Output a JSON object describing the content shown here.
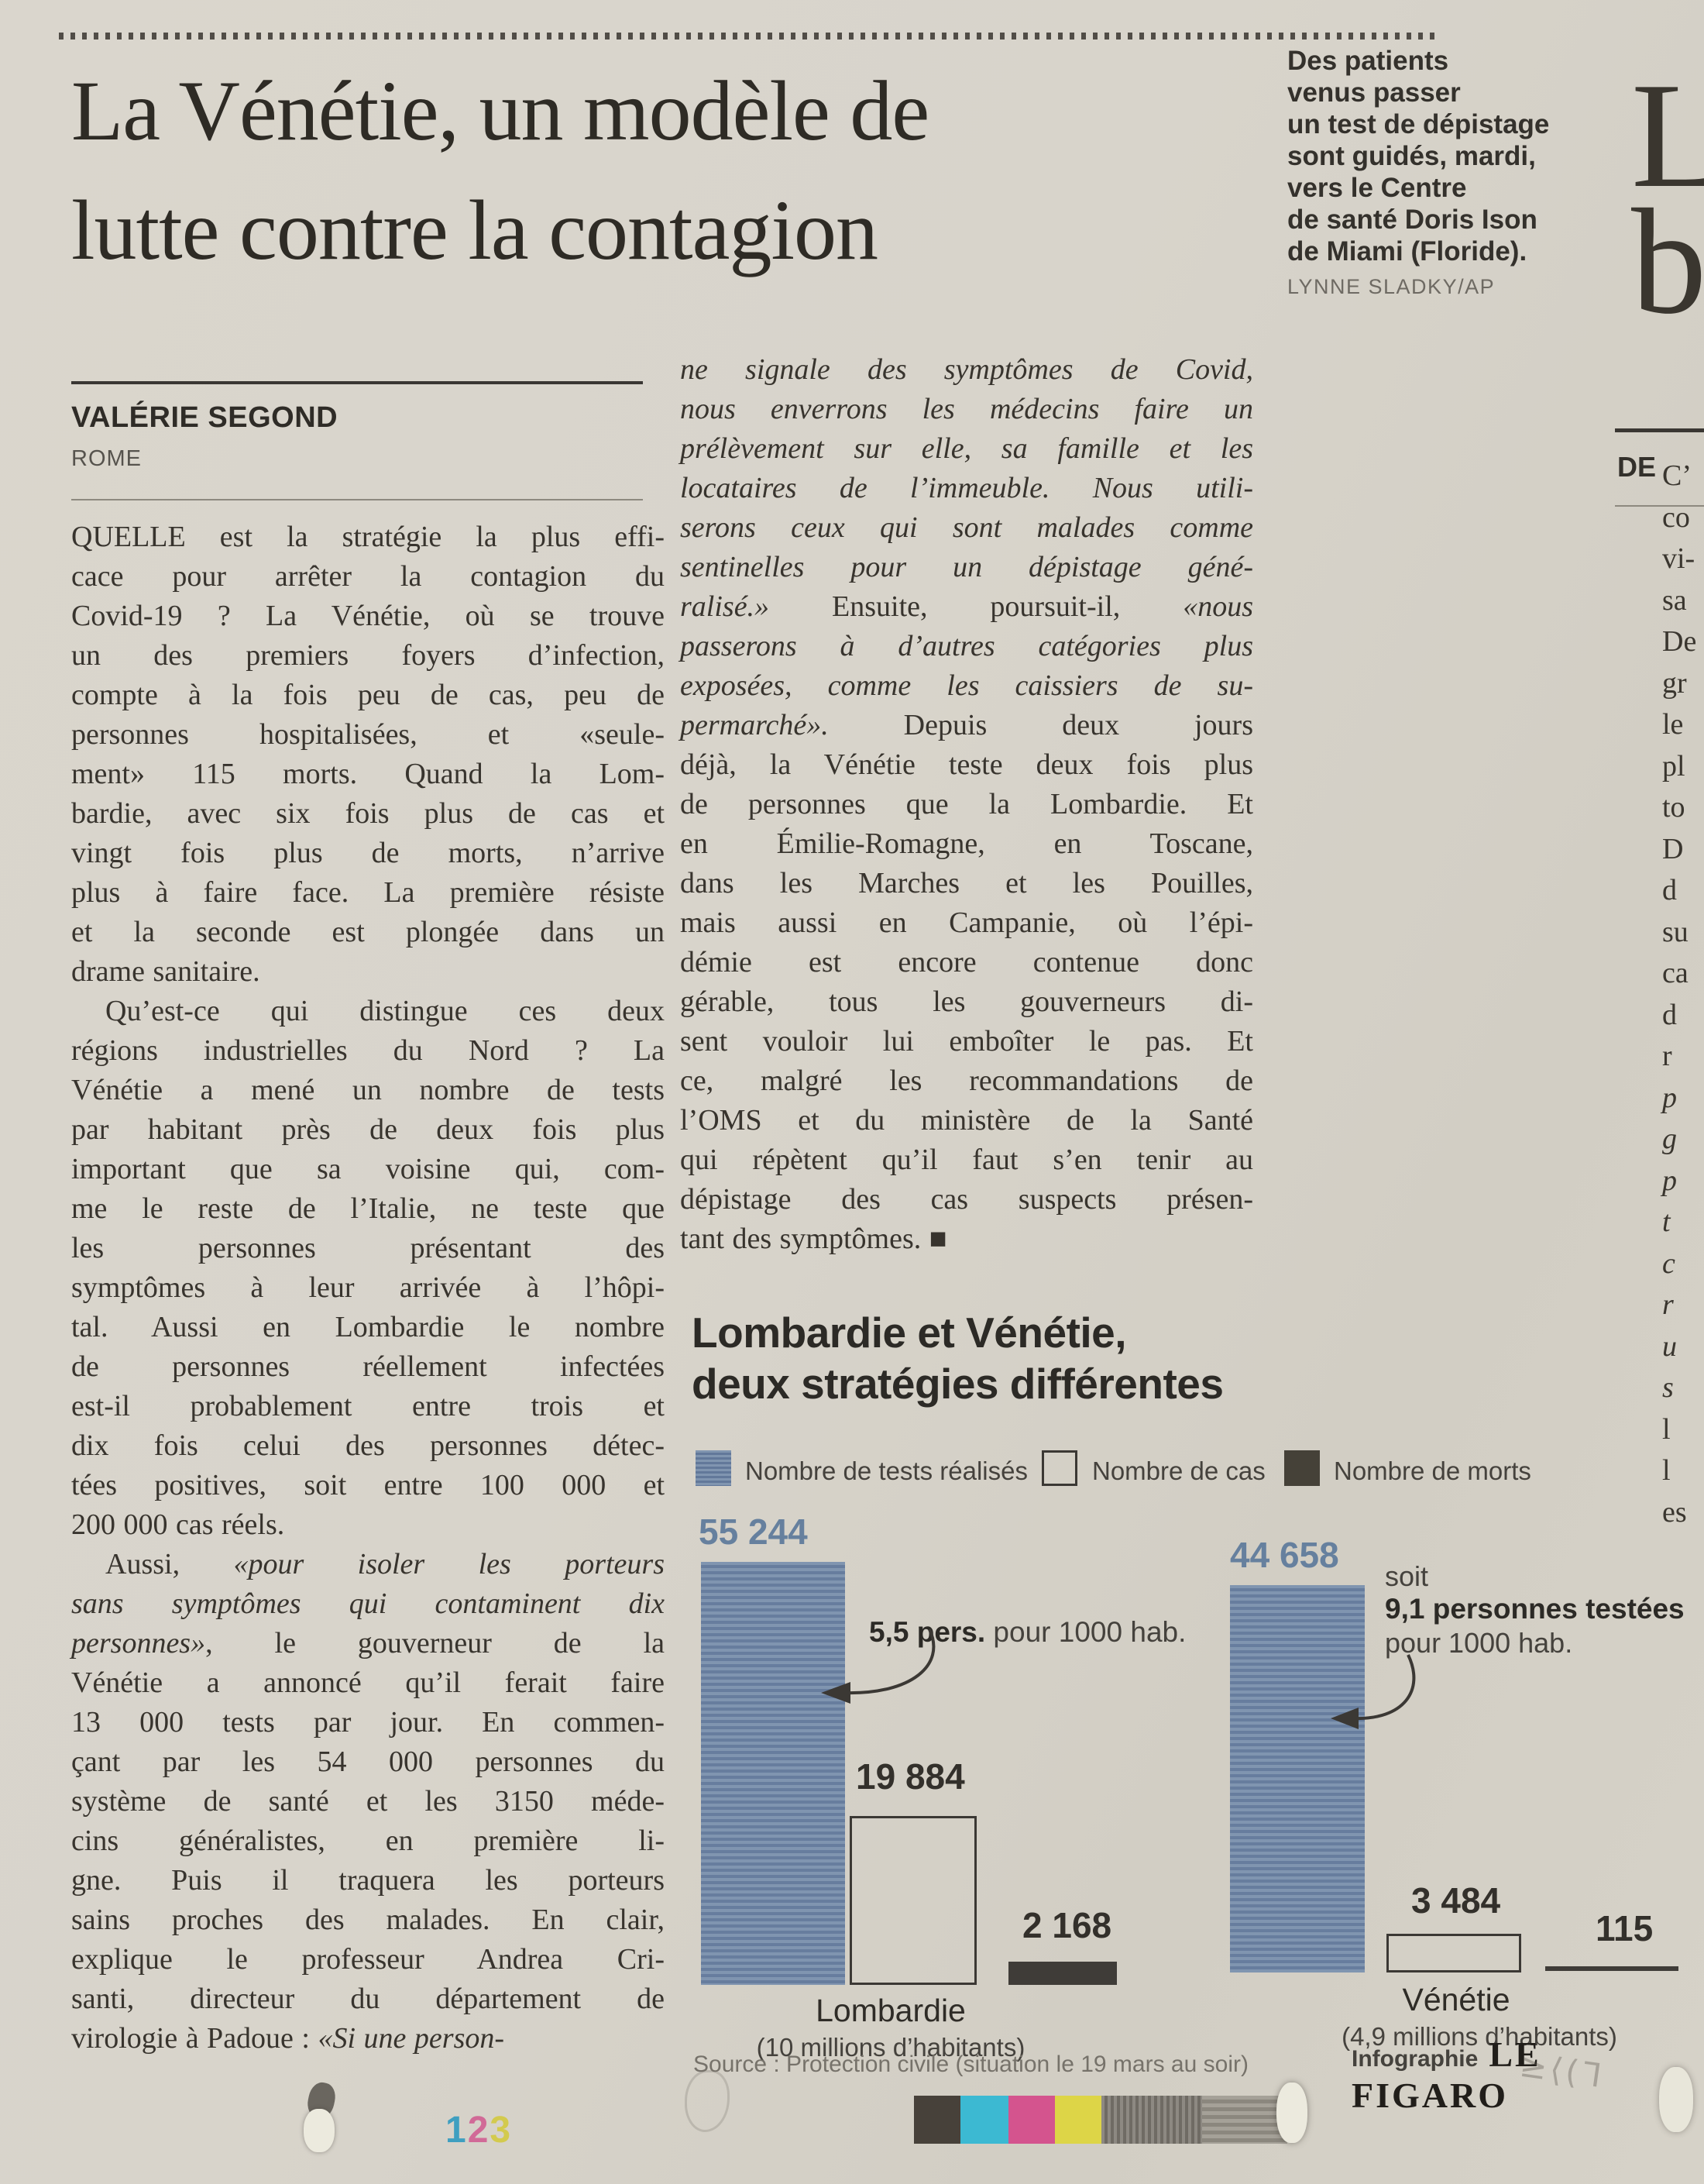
{
  "page": {
    "page_number_digits": [
      "1",
      "2",
      "3"
    ],
    "page_number_colors": [
      "#3f9fc0",
      "#d16a97",
      "#d3ca4e"
    ],
    "pencil_marks": "≥⟨(ᒣ"
  },
  "article": {
    "headline_line1": "La Vénétie, un modèle de",
    "headline_line2": "lutte contre la contagion",
    "byline": "VALÉRIE SEGOND",
    "dateline": "ROME",
    "column1_lines": [
      {
        "t": "QUELLE est la stratégie la plus effi-"
      },
      {
        "t": "cace pour arrêter la contagion du"
      },
      {
        "t": "Covid-19 ? La Vénétie, où se trouve"
      },
      {
        "t": "un des premiers foyers d’infection,"
      },
      {
        "t": "compte à la fois peu de cas, peu de"
      },
      {
        "t": "personnes hospitalisées, et «seule-"
      },
      {
        "t": "ment» 115 morts. Quand la Lom-"
      },
      {
        "t": "bardie, avec six fois plus de cas et"
      },
      {
        "t": "vingt fois plus de morts, n’arrive"
      },
      {
        "t": "plus à faire face. La première résiste"
      },
      {
        "t": "et la seconde est plongée dans un"
      },
      {
        "t": "drame sanitaire.",
        "nj": true
      },
      {
        "t": "Qu’est-ce qui distingue ces deux",
        "ind": true
      },
      {
        "t": "régions industrielles du Nord ? La"
      },
      {
        "t": "Vénétie a mené un nombre de tests"
      },
      {
        "t": "par habitant près de deux fois plus"
      },
      {
        "t": "important que sa voisine qui, com-"
      },
      {
        "t": "me le reste de l’Italie, ne teste que"
      },
      {
        "t": "les personnes présentant des"
      },
      {
        "t": "symptômes à leur arrivée à l’hôpi-"
      },
      {
        "t": "tal. Aussi en Lombardie le nombre"
      },
      {
        "t": "de personnes réellement infectées"
      },
      {
        "t": "est-il probablement entre trois et"
      },
      {
        "t": "dix fois celui des personnes détec-"
      },
      {
        "t": "tées positives, soit entre 100 000 et"
      },
      {
        "t": "200 000 cas réels.",
        "nj": true
      },
      {
        "ind": true,
        "seg": [
          {
            "t": "Aussi, "
          },
          {
            "t": "«pour isoler les porteurs",
            "i": true
          }
        ]
      },
      {
        "t": "sans symptômes qui contaminent dix",
        "i": true
      },
      {
        "seg": [
          {
            "t": "personnes»",
            "i": true
          },
          {
            "t": ", le gouverneur de la"
          }
        ]
      },
      {
        "t": "Vénétie a annoncé qu’il ferait faire"
      },
      {
        "t": "13 000 tests par jour. En commen-"
      },
      {
        "t": "çant par les 54 000 personnes du"
      },
      {
        "t": "système de santé et les 3150 méde-"
      },
      {
        "t": "cins généralistes, en première li-"
      },
      {
        "t": "gne. Puis il traquera les porteurs"
      },
      {
        "t": "sains proches des malades. En clair,"
      },
      {
        "t": "explique le professeur Andrea Cri-"
      },
      {
        "t": "santi, directeur du département de"
      },
      {
        "nj": true,
        "seg": [
          {
            "t": "virologie à Padoue : "
          },
          {
            "t": "«Si une person-",
            "i": true
          }
        ]
      }
    ],
    "column2_lines": [
      {
        "t": "ne signale des symptômes de Covid,",
        "i": true
      },
      {
        "t": "nous enverrons les médecins faire un",
        "i": true
      },
      {
        "t": "prélèvement sur elle, sa famille et les",
        "i": true
      },
      {
        "t": "locataires de l’immeuble. Nous utili-",
        "i": true
      },
      {
        "t": "serons ceux qui sont malades comme",
        "i": true
      },
      {
        "t": "sentinelles pour un dépistage géné-",
        "i": true
      },
      {
        "seg": [
          {
            "t": "ralisé.»",
            "i": true
          },
          {
            "t": " Ensuite, poursuit-il, "
          },
          {
            "t": "«nous",
            "i": true
          }
        ]
      },
      {
        "t": "passerons à d’autres catégories plus",
        "i": true
      },
      {
        "t": "exposées, comme les caissiers de su-",
        "i": true
      },
      {
        "seg": [
          {
            "t": "permarché».",
            "i": true
          },
          {
            "t": " Depuis deux jours"
          }
        ]
      },
      {
        "t": "déjà, la Vénétie teste deux fois plus"
      },
      {
        "t": "de personnes que la Lombardie. Et"
      },
      {
        "t": "en Émilie-Romagne, en Toscane,"
      },
      {
        "t": "dans les Marches et les Pouilles,"
      },
      {
        "t": "mais aussi en Campanie, où l’épi-"
      },
      {
        "t": "démie est encore contenue donc"
      },
      {
        "t": "gérable, tous les gouverneurs di-"
      },
      {
        "t": "sent vouloir lui emboîter le pas. Et"
      },
      {
        "t": "ce, malgré les recommandations de"
      },
      {
        "t": "l’OMS et du ministère de la Santé"
      },
      {
        "t": "qui répètent qu’il faut s’en tenir au"
      },
      {
        "t": "dépistage des cas suspects présen-"
      },
      {
        "t": "tant des symptômes. ■",
        "nj": true
      }
    ]
  },
  "photo_caption": {
    "lines": [
      "Des patients",
      "venus passer",
      "un test de dépistage",
      "sont guidés, mardi,",
      "vers le Centre",
      "de santé Doris Ison",
      "de Miami (Floride)."
    ],
    "credit": "LYNNE SLADKY/AP"
  },
  "adjacent_article": {
    "big_letter_1": "L",
    "big_letter_2": "b",
    "kicker": "DE",
    "fragments": [
      {
        "t": "C’"
      },
      {
        "t": "co"
      },
      {
        "t": "vi-"
      },
      {
        "t": "sa"
      },
      {
        "t": "De"
      },
      {
        "t": "gr"
      },
      {
        "t": "le"
      },
      {
        "t": "pl"
      },
      {
        "t": "to"
      },
      {
        "t": "D"
      },
      {
        "t": "d"
      },
      {
        "t": "su"
      },
      {
        "t": "ca"
      },
      {
        "t": "d"
      },
      {
        "t": "r"
      },
      {
        "t": ""
      },
      {
        "t": "p",
        "i": true
      },
      {
        "t": "g",
        "i": true
      },
      {
        "t": "p",
        "i": true
      },
      {
        "t": "t",
        "i": true
      },
      {
        "t": "c",
        "i": true
      },
      {
        "t": "r",
        "i": true
      },
      {
        "t": "u",
        "i": true
      },
      {
        "t": "s",
        "i": true
      },
      {
        "t": "l"
      },
      {
        "t": "l"
      },
      {
        "t": "es"
      }
    ]
  },
  "infographic": {
    "title_line1": "Lombardie et Vénétie,",
    "title_line2": "deux stratégies différentes",
    "legend": [
      {
        "label": "Nombre de tests réalisés"
      },
      {
        "label": "Nombre de cas"
      },
      {
        "label": "Nombre de morts"
      }
    ],
    "groups": [
      {
        "name": "Lombardie",
        "sub": "(10 millions d’habitants)",
        "tests": "55 244",
        "cases": "19 884",
        "deaths": "2 168",
        "annotation_bold": "5,5 pers.",
        "annotation_rest": " pour 1000 hab."
      },
      {
        "name": "Vénétie",
        "sub": "(4,9 millions d’habitants)",
        "tests": "44 658",
        "cases": "3 484",
        "deaths": "115",
        "annotation_pre": "soit",
        "annotation_bold": "9,1 personnes testées",
        "annotation_rest": "pour 1000 hab."
      }
    ],
    "source": "Source : Protection civile (situation le 19 mars au soir)",
    "credit_prefix": "Infographie",
    "credit_brand": "LE FIGARO",
    "colors": {
      "tests_bar": "#6d84a3",
      "deaths_bar": "#3f3c38",
      "value_blue": "#66809e",
      "value_dark": "#33302b"
    }
  },
  "chart_data": {
    "type": "bar",
    "title": "Lombardie et Vénétie, deux stratégies différentes",
    "categories": [
      "Lombardie",
      "Vénétie"
    ],
    "category_notes": [
      "(10 millions d’habitants)",
      "(4,9 millions d’habitants)"
    ],
    "series": [
      {
        "name": "Nombre de tests réalisés",
        "values": [
          55244,
          44658
        ]
      },
      {
        "name": "Nombre de cas",
        "values": [
          19884,
          3484
        ]
      },
      {
        "name": "Nombre de morts",
        "values": [
          2168,
          115
        ]
      }
    ],
    "annotations": [
      "5,5 pers. pour 1000 hab. (Lombardie)",
      "soit 9,1 personnes testées pour 1000 hab. (Vénétie)"
    ],
    "legend_position": "top",
    "grid": false,
    "source": "Source : Protection civile (situation le 19 mars au soir)"
  }
}
